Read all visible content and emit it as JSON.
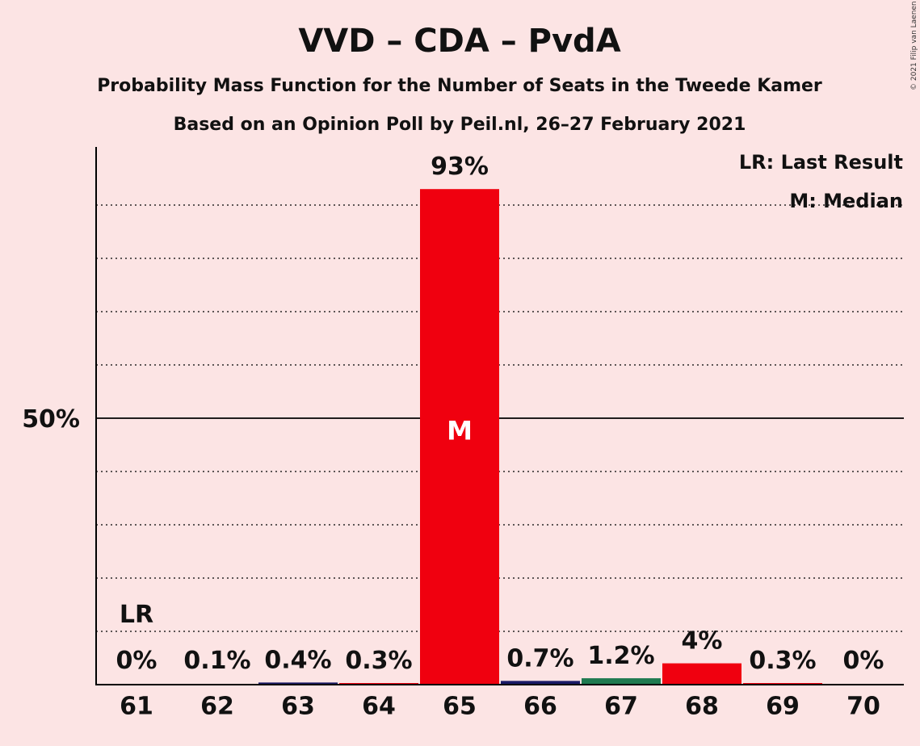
{
  "title": "VVD – CDA – PvdA",
  "subtitle1": "Probability Mass Function for the Number of Seats in the Tweede Kamer",
  "subtitle2": "Based on an Opinion Poll by Peil.nl, 26–27 February 2021",
  "copyright": "© 2021 Filip van Laenen",
  "legend": {
    "lr": "LR: Last Result",
    "median": "M: Median"
  },
  "colors": {
    "background": "#fce4e4",
    "red": "#f0000f",
    "navy": "#1a1a66",
    "green": "#1f7a50",
    "axis": "#000000"
  },
  "chart_data": {
    "type": "bar",
    "categories": [
      "61",
      "62",
      "63",
      "64",
      "65",
      "66",
      "67",
      "68",
      "69",
      "70"
    ],
    "values": [
      0,
      0.1,
      0.4,
      0.3,
      93,
      0.7,
      1.2,
      4,
      0.3,
      0
    ],
    "labels": [
      "0%",
      "0.1%",
      "0.4%",
      "0.3%",
      "93%",
      "0.7%",
      "1.2%",
      "4%",
      "0.3%",
      "0%"
    ],
    "bar_colors": [
      "#f0000f",
      "#f0000f",
      "#1a1a66",
      "#f0000f",
      "#f0000f",
      "#1a1a66",
      "#1f7a50",
      "#f0000f",
      "#f0000f",
      "#f0000f"
    ],
    "ylim": [
      0,
      100
    ],
    "yticks": [
      {
        "value": 50,
        "label": "50%"
      }
    ],
    "gridlines": [
      10,
      20,
      30,
      40,
      60,
      70,
      80,
      90
    ],
    "last_result_category": "61",
    "last_result_label": "LR",
    "median_category": "65",
    "median_label": "M"
  }
}
